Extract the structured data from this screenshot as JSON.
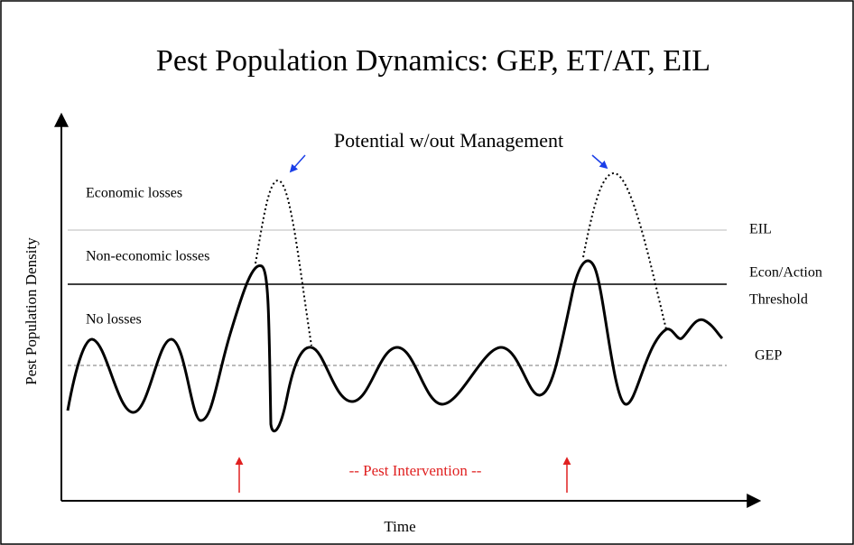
{
  "title": "Pest Population Dynamics: GEP, ET/AT, EIL",
  "y_axis_label": "Pest Population Density",
  "x_axis_label": "Time",
  "zones": [
    "Economic losses",
    "Non-economic losses",
    "No losses"
  ],
  "levels": {
    "eil": "EIL",
    "threshold": [
      "Econ/Action",
      "Threshold"
    ],
    "gep": "GEP"
  },
  "potential_label": "Potential w/out Management",
  "intervention_label": "-- Pest Intervention --"
}
